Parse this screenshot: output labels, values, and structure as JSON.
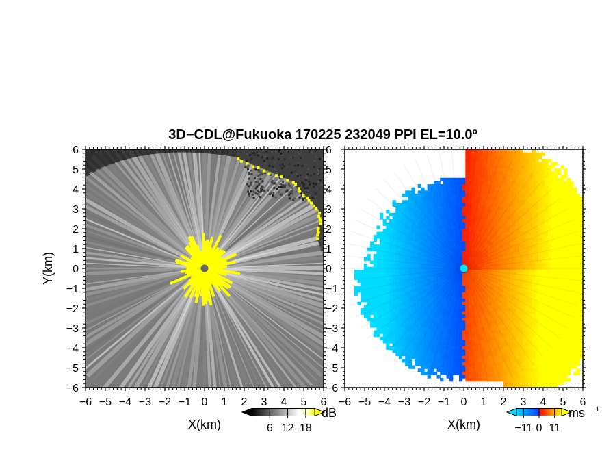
{
  "figure": {
    "title": "3D−CDL@Fukuoka 170225 232049 PPI EL=10.0º"
  },
  "chart_data": [
    {
      "type": "heatmap",
      "name": "snr-panel",
      "xlabel": "X(km)",
      "ylabel": "Y(km)",
      "xlim": [
        -6,
        6
      ],
      "ylim": [
        -6,
        6
      ],
      "xticks": [
        "−6",
        "−5",
        "−4",
        "−3",
        "−2",
        "−1",
        "0",
        "1",
        "2",
        "3",
        "4",
        "5",
        "6"
      ],
      "yticks": [
        "6",
        "5",
        "4",
        "3",
        "2",
        "1",
        "0",
        "−1",
        "−2",
        "−3",
        "−4",
        "−5",
        "−6"
      ],
      "colorbar": {
        "unit": "dB",
        "ticks": [
          "6",
          "12",
          "18"
        ],
        "tick_values": [
          6,
          12,
          18
        ],
        "range": [
          0,
          21
        ],
        "colors": [
          "#000000",
          "#ffffff",
          "#ffff00"
        ]
      },
      "radar_site": [
        0,
        0
      ],
      "bright_edge_range_km": 1.3,
      "echo_boundary_ne": [
        [
          1.6,
          5.6
        ],
        [
          4.4,
          4.4
        ],
        [
          5.8,
          2.9
        ],
        [
          5.7,
          1.4
        ]
      ]
    },
    {
      "type": "heatmap",
      "name": "velocity-panel",
      "xlabel": "X(km)",
      "xlim": [
        -6,
        6
      ],
      "ylim": [
        -6,
        6
      ],
      "xticks": [
        "−6",
        "−5",
        "−4",
        "−3",
        "−2",
        "−1",
        "0",
        "1",
        "2",
        "3",
        "4",
        "5",
        "6"
      ],
      "yticks": [
        "6",
        "5",
        "4",
        "3",
        "2",
        "1",
        "0",
        "−1",
        "−2",
        "−3",
        "−4",
        "−5",
        "−6"
      ],
      "colorbar": {
        "unit": "ms",
        "unit_exp": "−1",
        "ticks": [
          "−11",
          "0",
          "11"
        ],
        "tick_values": [
          -11,
          0,
          11
        ],
        "range": [
          -16,
          16
        ],
        "colors": [
          "#00dcff",
          "#0050ff",
          "#ff0000",
          "#ffff00"
        ]
      },
      "radar_site": [
        0,
        0
      ],
      "zero_line_x_km": -0.1,
      "data_extent_km": {
        "west": -6.0,
        "east": 6.0,
        "north": 6.0,
        "south": -5.6
      }
    }
  ]
}
